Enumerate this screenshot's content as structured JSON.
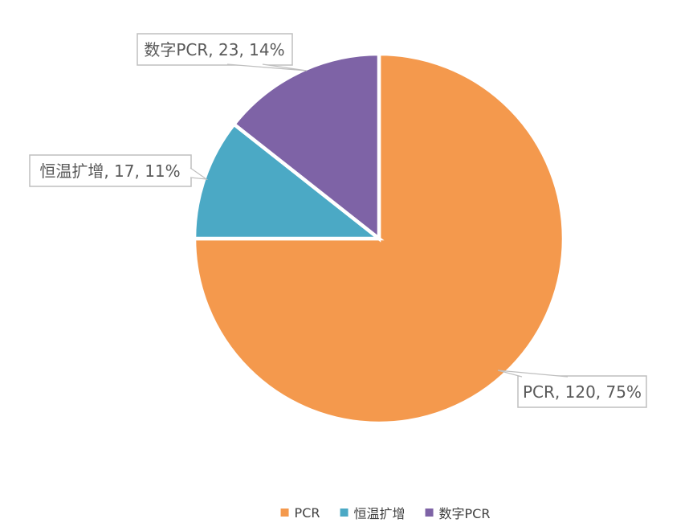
{
  "chart_data": {
    "type": "pie",
    "title": "",
    "total": 160,
    "start_angle_deg": 0,
    "direction": "clockwise",
    "legend_position": "bottom",
    "background": "#FFFFFF",
    "slices": [
      {
        "name": "PCR",
        "value": 120,
        "pct": "75%",
        "color": "#F4994D",
        "data_label": "PCR, 120, 75%"
      },
      {
        "name": "恒温扩增",
        "value": 17,
        "pct": "11%",
        "color": "#4BA9C5",
        "data_label": "恒温扩增, 17, 11%"
      },
      {
        "name": "数字PCR",
        "value": 23,
        "pct": "14%",
        "color": "#7E63A6",
        "data_label": "数字PCR, 23, 14%"
      }
    ]
  },
  "colors": {
    "background": "#FFFFFF",
    "callout_border": "#BFBFBF",
    "callout_fill": "#FFFFFF",
    "label_text": "#595959",
    "legend_text": "#404040",
    "slice_gap": "#FFFFFF"
  }
}
